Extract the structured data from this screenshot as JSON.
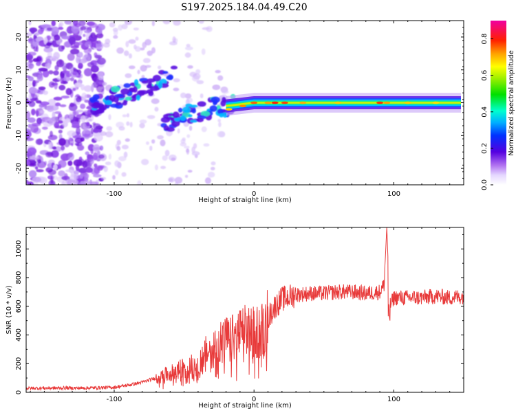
{
  "title": "S197.2025.184.04.49.C20",
  "chart_data": [
    {
      "type": "heatmap",
      "xlabel": "Height of straight line (km)",
      "ylabel": "Frequency (Hz)",
      "xlim": [
        -163,
        150
      ],
      "ylim": [
        -25,
        25
      ],
      "xticks": [
        -100,
        0,
        100
      ],
      "yticks": [
        -20,
        -10,
        0,
        10,
        20
      ],
      "colorbar": {
        "label": "Normalized spectral amplitude",
        "range": [
          0.0,
          0.9
        ],
        "ticks": [
          0.0,
          0.2,
          0.4,
          0.6,
          0.8
        ]
      },
      "ridge": [
        {
          "x": -115,
          "y": 0
        },
        {
          "x": -100,
          "y": 3
        },
        {
          "x": -85,
          "y": 5
        },
        {
          "x": -70,
          "y": 7
        },
        {
          "x": -60,
          "y": 8
        },
        {
          "x": -50,
          "y": -2
        },
        {
          "x": -40,
          "y": -3
        },
        {
          "x": -30,
          "y": -2
        },
        {
          "x": -20,
          "y": -1
        },
        {
          "x": -10,
          "y": 0
        },
        {
          "x": 0,
          "y": 0
        },
        {
          "x": 50,
          "y": 0
        },
        {
          "x": 100,
          "y": 0
        },
        {
          "x": 148,
          "y": 0
        }
      ]
    },
    {
      "type": "line",
      "xlabel": "Height of straight line (km)",
      "ylabel": "SNR (10 * v/v)",
      "xlim": [
        -163,
        150
      ],
      "ylim": [
        0,
        1150
      ],
      "xticks": [
        -100,
        0,
        100
      ],
      "yticks": [
        0,
        200,
        400,
        600,
        800,
        1000
      ],
      "color": "#e83a3a",
      "series": [
        {
          "x": [
            -163,
            -140,
            -120,
            -100,
            -90,
            -80,
            -70,
            -60,
            -50,
            -40,
            -35,
            -30,
            -25,
            -20,
            -15,
            -10,
            -5,
            0,
            5,
            10,
            15,
            20,
            30,
            40,
            50,
            60,
            70,
            80,
            90,
            93,
            95,
            97,
            100,
            110,
            120,
            130,
            140,
            150
          ],
          "values": [
            28,
            30,
            30,
            35,
            50,
            70,
            100,
            130,
            170,
            200,
            270,
            300,
            350,
            370,
            380,
            410,
            430,
            420,
            440,
            520,
            600,
            650,
            680,
            690,
            690,
            700,
            700,
            690,
            700,
            750,
            1150,
            600,
            660,
            660,
            660,
            670,
            660,
            670
          ]
        }
      ]
    }
  ]
}
